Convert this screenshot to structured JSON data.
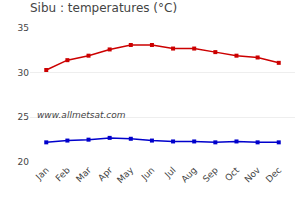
{
  "chart_data": {
    "type": "line",
    "title": "Sibu : temperatures (°C)",
    "categories": [
      "Jan",
      "Feb",
      "Mar",
      "Apr",
      "May",
      "Jun",
      "Jul",
      "Aug",
      "Sep",
      "Oct",
      "Nov",
      "Dec"
    ],
    "series": [
      {
        "color": "#cc0000",
        "marker": "square",
        "values": [
          30.3,
          31.4,
          31.9,
          32.6,
          33.1,
          33.1,
          32.7,
          32.7,
          32.3,
          31.9,
          31.7,
          31.1
        ]
      },
      {
        "color": "#0000cc",
        "marker": "square",
        "values": [
          22.2,
          22.4,
          22.5,
          22.7,
          22.6,
          22.4,
          22.3,
          22.3,
          22.2,
          22.3,
          22.2,
          22.2
        ]
      }
    ],
    "ylim": [
      20,
      35
    ],
    "yticks": [
      20,
      25,
      30,
      35
    ],
    "grid": true,
    "annotations": [
      "www.allmetsat.com"
    ]
  }
}
